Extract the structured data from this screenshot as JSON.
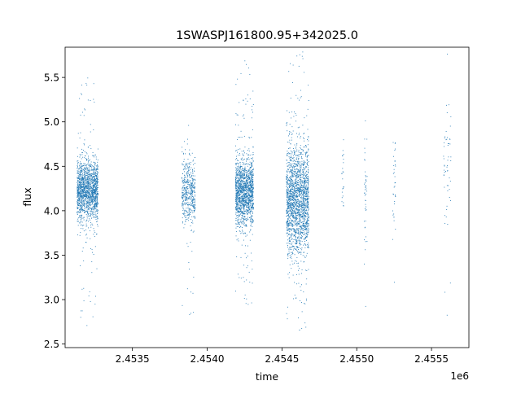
{
  "chart_data": {
    "type": "scatter",
    "title": "1SWASPJ161800.95+342025.0",
    "xlabel": "time",
    "ylabel": "flux",
    "x_offset_label": "1e6",
    "xlim": [
      2453050,
      2455750
    ],
    "ylim": [
      2.46,
      5.84
    ],
    "x_ticks": [
      2453500,
      2454000,
      2454500,
      2455000,
      2455500
    ],
    "x_tick_labels": [
      "2.4535",
      "2.4540",
      "2.4545",
      "2.4550",
      "2.4555"
    ],
    "y_ticks": [
      2.5,
      3.0,
      3.5,
      4.0,
      4.5,
      5.0,
      5.5
    ],
    "y_tick_labels": [
      "2.5",
      "3.0",
      "3.5",
      "4.0",
      "4.5",
      "5.0",
      "5.5"
    ],
    "grid": false,
    "legend": "none",
    "marker_color": "#1f77b4",
    "clusters": [
      {
        "x_start": 2453130,
        "x_end": 2453270,
        "center": 4.22,
        "spread": 0.17,
        "n": 1600,
        "min": 2.7,
        "max": 5.5
      },
      {
        "x_start": 2453830,
        "x_end": 2453920,
        "center": 4.22,
        "spread": 0.17,
        "n": 500,
        "min": 2.8,
        "max": 5.43
      },
      {
        "x_start": 2454190,
        "x_end": 2454310,
        "center": 4.2,
        "spread": 0.19,
        "n": 1500,
        "min": 2.9,
        "max": 5.72
      },
      {
        "x_start": 2454530,
        "x_end": 2454680,
        "center": 4.12,
        "spread": 0.3,
        "n": 2000,
        "min": 2.62,
        "max": 5.84
      },
      {
        "x_start": 2454900,
        "x_end": 2454915,
        "center": 4.3,
        "spread": 0.3,
        "n": 25,
        "min": 3.9,
        "max": 4.95
      },
      {
        "x_start": 2455050,
        "x_end": 2455070,
        "center": 4.2,
        "spread": 0.35,
        "n": 45,
        "min": 2.65,
        "max": 5.2
      },
      {
        "x_start": 2455240,
        "x_end": 2455260,
        "center": 4.3,
        "spread": 0.3,
        "n": 35,
        "min": 3.15,
        "max": 5.38
      },
      {
        "x_start": 2455580,
        "x_end": 2455630,
        "center": 4.4,
        "spread": 0.35,
        "n": 55,
        "min": 2.7,
        "max": 5.8
      }
    ]
  }
}
